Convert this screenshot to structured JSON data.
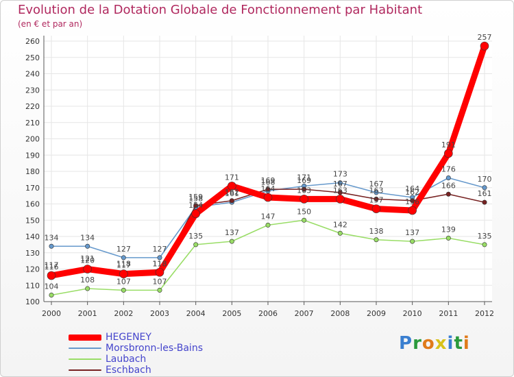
{
  "chart_data": {
    "type": "line",
    "title": "Evolution de la Dotation Globale de Fonctionnement par Habitant",
    "subtitle": "(en € et par an)",
    "x": [
      "2000",
      "2001",
      "2002",
      "2003",
      "2004",
      "2005",
      "2006",
      "2007",
      "2008",
      "2009",
      "2010",
      "2011",
      "2012"
    ],
    "ylim": [
      100,
      260
    ],
    "yticks": [
      100,
      110,
      120,
      130,
      140,
      150,
      160,
      170,
      180,
      190,
      200,
      210,
      220,
      230,
      240,
      250,
      260
    ],
    "series": [
      {
        "name": "Morsbronn-les-Bains",
        "color": "#6699cc",
        "values": [
          134,
          134,
          127,
          127,
          158,
          161,
          168,
          171,
          173,
          167,
          164,
          176,
          170
        ]
      },
      {
        "name": "Laubach",
        "color": "#99dd66",
        "values": [
          104,
          108,
          107,
          107,
          135,
          137,
          147,
          150,
          142,
          138,
          137,
          139,
          135
        ]
      },
      {
        "name": "Eschbach",
        "color": "#772222",
        "values": [
          117,
          121,
          118,
          118,
          159,
          162,
          169,
          169,
          167,
          163,
          162,
          166,
          161
        ]
      },
      {
        "name": "HEGENEY",
        "color": "#ff0000",
        "values": [
          116,
          120,
          117,
          118,
          154,
          171,
          164,
          163,
          163,
          157,
          156,
          191,
          257
        ]
      }
    ],
    "labels": {
      "Morsbronn-les-Bains": [
        "134",
        "134",
        "127",
        "127",
        "158",
        "161",
        "168",
        "171",
        "173",
        "167",
        "164",
        "176",
        "170"
      ],
      "Laubach": [
        "104",
        "108",
        "107",
        "107",
        "135",
        "137",
        "147",
        "150",
        "142",
        "138",
        "137",
        "139",
        "135"
      ],
      "Eschbach": [
        "117",
        "121",
        "118",
        "118",
        "159",
        "162",
        "169",
        "169",
        "167",
        "163",
        "162",
        "166",
        "161"
      ],
      "HEGENEY": [
        "116",
        "120",
        "117",
        "118",
        "154",
        "171",
        "164",
        "163",
        "163",
        "157",
        "156",
        "191",
        "257"
      ]
    },
    "legend": [
      {
        "name": "HEGENEY",
        "color": "#ff0000",
        "text_color": "#4444cc"
      },
      {
        "name": "Morsbronn-les-Bains",
        "color": "#6699cc",
        "text_color": "#4444cc"
      },
      {
        "name": "Laubach",
        "color": "#99dd66",
        "text_color": "#4444cc"
      },
      {
        "name": "Eschbach",
        "color": "#772222",
        "text_color": "#4444cc"
      }
    ],
    "legend_position": "bottom-left"
  },
  "logo": {
    "text": "Proxiti",
    "letters": [
      {
        "ch": "P",
        "color": "#3a7fd0"
      },
      {
        "ch": "r",
        "color": "#2b9a3c"
      },
      {
        "ch": "o",
        "color": "#e07b1a"
      },
      {
        "ch": "x",
        "color": "#d8c21a"
      },
      {
        "ch": "i",
        "color": "#3a7fd0"
      },
      {
        "ch": "t",
        "color": "#2b9a3c"
      },
      {
        "ch": "i",
        "color": "#e07b1a"
      }
    ]
  }
}
